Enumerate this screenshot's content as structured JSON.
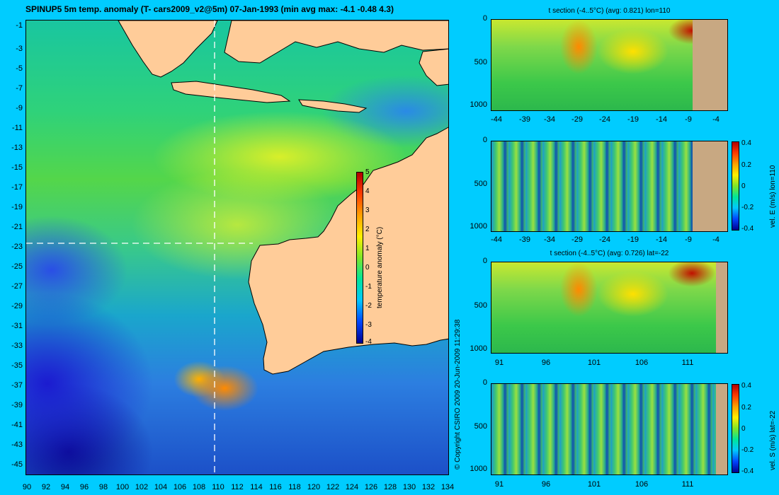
{
  "title": "SPINUP5 5m temp. anomaly (T- cars2009_v2@5m) 07-Jan-1993 (min avg max: -4.1 -0.48 4.3)",
  "map": {
    "y_ticks": [
      "-1",
      "-3",
      "-5",
      "-7",
      "-9",
      "-11",
      "-13",
      "-15",
      "-17",
      "-19",
      "-21",
      "-23",
      "-25",
      "-27",
      "-29",
      "-31",
      "-33",
      "-35",
      "-37",
      "-39",
      "-41",
      "-43",
      "-45"
    ],
    "x_ticks": [
      "90",
      "92",
      "94",
      "96",
      "98",
      "100",
      "102",
      "104",
      "106",
      "108",
      "110",
      "112",
      "114",
      "116",
      "118",
      "120",
      "122",
      "124",
      "126",
      "128",
      "130",
      "132",
      "134"
    ],
    "section_lon": 110,
    "section_lat": -22
  },
  "colorbar": {
    "ticks": [
      "5",
      "4",
      "3",
      "2",
      "1",
      "0",
      "-1",
      "-2",
      "-3",
      "-4"
    ],
    "label": "temperature anomaly (°C)"
  },
  "copyright": "© Copyright CSIRO 2009   20-Jun-2009 11:29:38",
  "panels": [
    {
      "title": "t section (-4..5°C) (avg: 0.821) lon=110",
      "y_ticks": [
        "0",
        "500",
        "1000"
      ],
      "x_ticks": [
        "-44",
        "-39",
        "-34",
        "-29",
        "-24",
        "-19",
        "-14",
        "-9",
        "-4"
      ]
    },
    {
      "title": "",
      "y_ticks": [
        "0",
        "500",
        "1000"
      ],
      "x_ticks": [
        "-44",
        "-39",
        "-34",
        "-29",
        "-24",
        "-19",
        "-14",
        "-9",
        "-4"
      ],
      "cb_ticks": [
        "0.4",
        "0.2",
        "0",
        "-0.2",
        "-0.4"
      ],
      "cb_label": "vel. E (m/s) lon=110"
    },
    {
      "title": "t section (-4..5°C) (avg: 0.726) lat=-22",
      "y_ticks": [
        "0",
        "500",
        "1000"
      ],
      "x_ticks": [
        "91",
        "96",
        "101",
        "106",
        "111"
      ]
    },
    {
      "title": "",
      "y_ticks": [
        "0",
        "500",
        "1000"
      ],
      "x_ticks": [
        "91",
        "96",
        "101",
        "106",
        "111"
      ],
      "cb_ticks": [
        "0.4",
        "0.2",
        "0",
        "-0.2",
        "-0.4"
      ],
      "cb_label": "vel. S (m/s) lat=-22"
    }
  ],
  "colors": {
    "background": "#00ccff",
    "land": "#ffcc99",
    "section_land": "#c8a882"
  }
}
